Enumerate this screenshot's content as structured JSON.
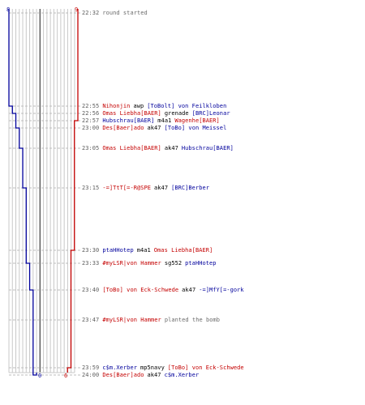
{
  "colors": {
    "team_red": "#c40000",
    "team_blue": "#00009c",
    "weapon": "#000000",
    "timestamp": "#5e5e5e",
    "system": "#6b6b6b"
  },
  "axis": {
    "blue_start": "8",
    "red_start": "9",
    "blue_end": "0",
    "red_end": "6"
  },
  "events": [
    {
      "time": "22:32",
      "system": "round started"
    },
    {
      "time": "22:55",
      "killer": "Nihonjin",
      "killer_team": "red",
      "weapon": "awp",
      "victim": "[ToBolt] von Feilkloben",
      "victim_team": "blue"
    },
    {
      "time": "22:56",
      "killer": "Omas Liebha[BAER]",
      "killer_team": "red",
      "weapon": "grenade",
      "victim": "[BRC]Leonar",
      "victim_team": "blue"
    },
    {
      "time": "22:57",
      "killer": "Hubschrau[BAER]",
      "killer_team": "blue",
      "weapon": "m4a1",
      "victim": "Wagenhe[BAER]",
      "victim_team": "red"
    },
    {
      "time": "23:00",
      "killer": "Des[Baer]ado",
      "killer_team": "red",
      "weapon": "ak47",
      "victim": "[ToBo] von Meissel",
      "victim_team": "blue"
    },
    {
      "time": "23:05",
      "killer": "Omas Liebha[BAER]",
      "killer_team": "red",
      "weapon": "ak47",
      "victim": "Hubschrau[BAER]",
      "victim_team": "blue"
    },
    {
      "time": "23:15",
      "killer": "-=]TtT[=-R@SPE",
      "killer_team": "red",
      "weapon": "ak47",
      "victim": "[BRC]Berber",
      "victim_team": "blue"
    },
    {
      "time": "23:30",
      "killer": "ptaHHotep",
      "killer_team": "blue",
      "weapon": "m4a1",
      "victim": "Omas Liebha[BAER]",
      "victim_team": "red"
    },
    {
      "time": "23:33",
      "killer": "#myLSR|von Hammer",
      "killer_team": "red",
      "weapon": "sg552",
      "victim": "ptaHHotep",
      "victim_team": "blue"
    },
    {
      "time": "23:40",
      "killer": "[ToBo] von Eck-Schwede",
      "killer_team": "red",
      "weapon": "ak47",
      "victim": "-=]MfY[=-gork",
      "victim_team": "blue"
    },
    {
      "time": "23:47",
      "killer": "#myLSR|von Hammer",
      "killer_team": "red",
      "system": "planted the bomb"
    },
    {
      "time": "23:59",
      "killer": "c$m.Xerber",
      "killer_team": "blue",
      "weapon": "mp5navy",
      "victim": "[ToBo] von Eck-Schwede",
      "victim_team": "red"
    },
    {
      "time": "24:00",
      "killer": "Des[Baer]ado",
      "killer_team": "red",
      "weapon": "ak47",
      "victim": "c$m.Xerber",
      "victim_team": "blue"
    }
  ],
  "chart_data": {
    "type": "line",
    "x_unit": "round time (mm:ss)",
    "series": [
      {
        "team": "blue",
        "color": "#00009c",
        "alive": [
          8,
          7,
          6,
          5,
          4,
          3,
          2,
          1,
          0
        ],
        "at": [
          "22:32",
          "22:55",
          "22:56",
          "23:00",
          "23:05",
          "23:15",
          "23:33",
          "23:40",
          "24:00"
        ]
      },
      {
        "team": "red",
        "color": "#c40000",
        "alive": [
          9,
          8,
          7,
          6
        ],
        "at": [
          "22:32",
          "22:57",
          "23:30",
          "23:59"
        ]
      }
    ]
  }
}
